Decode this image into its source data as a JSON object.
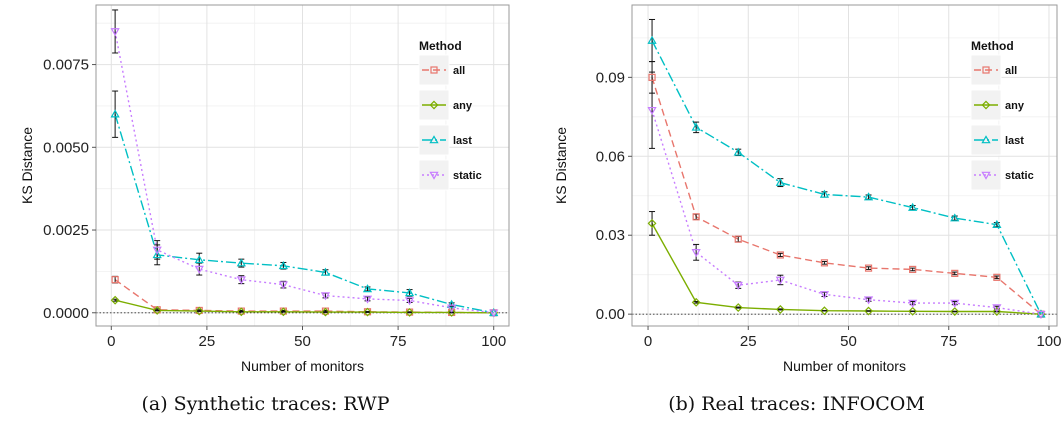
{
  "chart_data": [
    {
      "type": "line",
      "xlabel": "Number of monitors",
      "ylabel": "KS Distance",
      "xlim": [
        -4,
        104
      ],
      "ylim": [
        -0.0004,
        0.0093
      ],
      "xticks": [
        0,
        25,
        50,
        75,
        100
      ],
      "xtick_labels": [
        "0",
        "25",
        "50",
        "75",
        "100"
      ],
      "yticks": [
        0.0,
        0.0025,
        0.005,
        0.0075
      ],
      "ytick_labels": [
        "0.0000",
        "0.0025",
        "0.0050",
        "0.0075"
      ],
      "grid": true,
      "legend_title": "Method",
      "legend_position": "top-right",
      "x": [
        1,
        12,
        23,
        34,
        45,
        56,
        67,
        78,
        89,
        100
      ],
      "series": [
        {
          "name": "all",
          "color": "#e8766d",
          "dash": "7 4",
          "marker": "square",
          "values": [
            0.001,
            9e-05,
            7e-05,
            5e-05,
            5e-05,
            5e-05,
            3e-05,
            2e-05,
            1e-05,
            0.0
          ],
          "errors": [
            0.0001,
            3e-05,
            2e-05,
            2e-05,
            2e-05,
            2e-05,
            1e-05,
            1e-05,
            1e-05,
            0.0
          ]
        },
        {
          "name": "any",
          "color": "#7cae00",
          "dash": "",
          "marker": "diamond",
          "values": [
            0.00038,
            7e-05,
            5e-05,
            3e-05,
            3e-05,
            2e-05,
            2e-05,
            1e-05,
            1e-05,
            0.0
          ],
          "errors": [
            3e-05,
            1e-05,
            1e-05,
            1e-05,
            1e-05,
            1e-05,
            1e-05,
            1e-05,
            1e-05,
            0.0
          ]
        },
        {
          "name": "last",
          "color": "#00bfc4",
          "dash": "10 3 2 3",
          "marker": "triangle",
          "values": [
            0.006,
            0.00175,
            0.0016,
            0.0015,
            0.00142,
            0.00122,
            0.00072,
            0.0006,
            0.00025,
            0.0
          ],
          "errors": [
            0.0007,
            0.0003,
            0.0002,
            0.00012,
            0.0001,
            8e-05,
            6e-05,
            0.0001,
            5e-05,
            0.0
          ]
        },
        {
          "name": "static",
          "color": "#c77cff",
          "dash": "2 3",
          "marker": "triangle-down",
          "values": [
            0.0085,
            0.0019,
            0.00132,
            0.001,
            0.00085,
            0.00052,
            0.00042,
            0.00037,
            0.00015,
            0.0
          ],
          "errors": [
            0.00065,
            0.00028,
            0.00018,
            0.00012,
            0.0001,
            7e-05,
            6e-05,
            6e-05,
            4e-05,
            0.0
          ]
        }
      ]
    },
    {
      "type": "line",
      "xlabel": "Number of monitors",
      "ylabel": "KS Distance",
      "xlim": [
        -4,
        102
      ],
      "ylim": [
        -0.0045,
        0.1175
      ],
      "xticks": [
        0,
        25,
        50,
        75,
        100
      ],
      "xtick_labels": [
        "0",
        "25",
        "50",
        "75",
        "100"
      ],
      "yticks": [
        0.0,
        0.03,
        0.06,
        0.09
      ],
      "ytick_labels": [
        "0.00",
        "0.03",
        "0.06",
        "0.09"
      ],
      "grid": true,
      "legend_title": "Method",
      "legend_position": "top-right",
      "x": [
        1,
        12,
        22.5,
        33,
        44,
        55,
        66,
        76.5,
        87,
        98
      ],
      "series": [
        {
          "name": "all",
          "color": "#e8766d",
          "dash": "7 4",
          "marker": "square",
          "values": [
            0.09,
            0.037,
            0.0285,
            0.0225,
            0.0195,
            0.0175,
            0.017,
            0.0155,
            0.014,
            0.0
          ],
          "errors": [
            0.006,
            0.001,
            0.001,
            0.0006,
            0.0005,
            0.0005,
            0.0005,
            0.0005,
            0.0005,
            0.0
          ]
        },
        {
          "name": "any",
          "color": "#7cae00",
          "dash": "",
          "marker": "diamond",
          "values": [
            0.0345,
            0.0045,
            0.0025,
            0.0018,
            0.0013,
            0.0012,
            0.0011,
            0.001,
            0.001,
            0.0
          ],
          "errors": [
            0.0045,
            0.0003,
            0.0002,
            0.0002,
            0.0001,
            0.0001,
            0.0001,
            0.0001,
            0.0001,
            0.0
          ]
        },
        {
          "name": "last",
          "color": "#00bfc4",
          "dash": "10 3 2 3",
          "marker": "triangle",
          "values": [
            0.104,
            0.071,
            0.0615,
            0.05,
            0.0455,
            0.0445,
            0.0405,
            0.0365,
            0.034,
            0.0
          ],
          "errors": [
            0.008,
            0.002,
            0.0012,
            0.0015,
            0.001,
            0.0008,
            0.0008,
            0.0008,
            0.0008,
            0.0
          ]
        },
        {
          "name": "static",
          "color": "#c77cff",
          "dash": "2 3",
          "marker": "triangle-down",
          "values": [
            0.0775,
            0.0235,
            0.011,
            0.013,
            0.0075,
            0.0055,
            0.0042,
            0.0042,
            0.0025,
            0.0
          ],
          "errors": [
            0.0145,
            0.003,
            0.0012,
            0.0018,
            0.0008,
            0.0006,
            0.0006,
            0.0006,
            0.0005,
            0.0
          ]
        }
      ]
    }
  ],
  "captions": {
    "a": "(a) Synthetic traces: RWP",
    "b": "(b) Real traces: INFOCOM"
  }
}
